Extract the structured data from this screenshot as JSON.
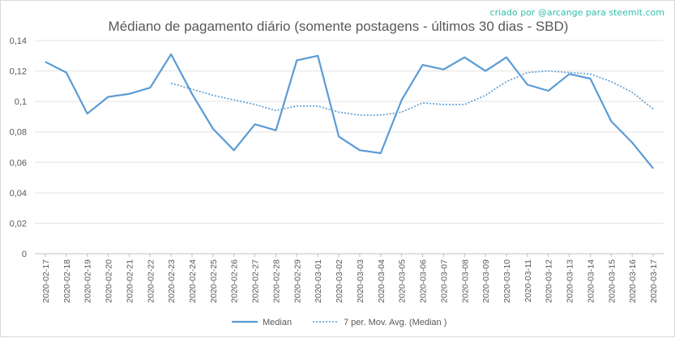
{
  "credit": "criado por @arcange para steemit.com",
  "chart_data": {
    "type": "line",
    "title": "Médiano de pagamento diário (somente postagens - últimos 30 dias - SBD)",
    "xlabel": "",
    "ylabel": "",
    "ylim": [
      0,
      0.14
    ],
    "yticks": [
      "0",
      "0,02",
      "0,04",
      "0,06",
      "0,08",
      "0,1",
      "0,12",
      "0,14"
    ],
    "ytick_values": [
      0,
      0.02,
      0.04,
      0.06,
      0.08,
      0.1,
      0.12,
      0.14
    ],
    "grid": true,
    "legend_position": "bottom",
    "categories": [
      "2020-02-17",
      "2020-02-18",
      "2020-02-19",
      "2020-02-20",
      "2020-02-21",
      "2020-02-22",
      "2020-02-23",
      "2020-02-24",
      "2020-02-25",
      "2020-02-26",
      "2020-02-27",
      "2020-02-28",
      "2020-02-29",
      "2020-03-01",
      "2020-03-02",
      "2020-03-03",
      "2020-03-04",
      "2020-03-05",
      "2020-03-06",
      "2020-03-07",
      "2020-03-08",
      "2020-03-09",
      "2020-03-10",
      "2020-03-11",
      "2020-03-12",
      "2020-03-13",
      "2020-03-14",
      "2020-03-15",
      "2020-03-16",
      "2020-03-17"
    ],
    "series": [
      {
        "name": "Median",
        "style": "solid",
        "color": "#5b9bd5",
        "values": [
          0.126,
          0.119,
          0.092,
          0.103,
          0.105,
          0.109,
          0.131,
          0.105,
          0.082,
          0.068,
          0.085,
          0.081,
          0.127,
          0.13,
          0.077,
          0.068,
          0.066,
          0.101,
          0.124,
          0.121,
          0.129,
          0.12,
          0.129,
          0.111,
          0.107,
          0.118,
          0.115,
          0.087,
          0.073,
          0.056
        ]
      },
      {
        "name": "7 per. Mov. Avg. (Median )",
        "style": "dotted",
        "color": "#5b9bd5",
        "values": [
          null,
          null,
          null,
          null,
          null,
          null,
          0.112,
          0.108,
          0.104,
          0.101,
          0.098,
          0.094,
          0.097,
          0.097,
          0.093,
          0.091,
          0.091,
          0.093,
          0.099,
          0.098,
          0.098,
          0.104,
          0.113,
          0.119,
          0.12,
          0.119,
          0.118,
          0.113,
          0.106,
          0.095
        ]
      }
    ]
  }
}
